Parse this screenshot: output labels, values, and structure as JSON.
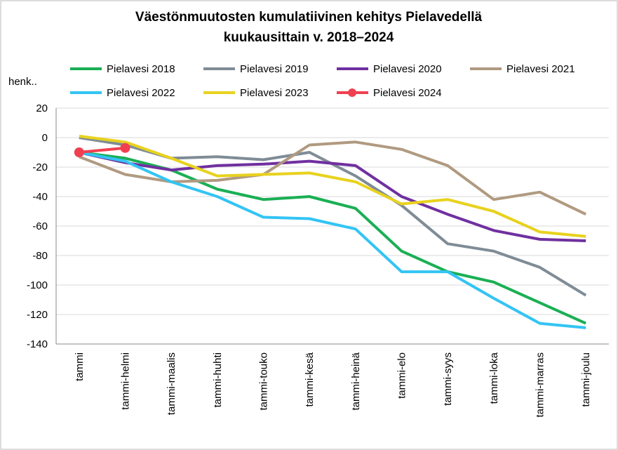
{
  "chart_data": {
    "type": "line",
    "title": [
      "Väestönmuutosten kumulatiivinen kehitys Pielavedellä",
      "kuukausittain v. 2018–2024"
    ],
    "y_label": "henk..",
    "categories": [
      "tammi",
      "tammi-helmi",
      "tammi-maalis",
      "tammi-huhti",
      "tammi-touko",
      "tammi-kesä",
      "tammi-heinä",
      "tammi-elo",
      "tammi-syys",
      "tammi-loka",
      "tammi-marras",
      "tammi-joulu"
    ],
    "series": [
      {
        "name": "Pielavesi 2018",
        "color": "#1aaf54",
        "values": [
          -10,
          -14,
          -22,
          -35,
          -42,
          -40,
          -48,
          -77,
          -91,
          -98,
          -112,
          -126
        ]
      },
      {
        "name": "Pielavesi 2019",
        "color": "#7f8c96",
        "values": [
          0,
          -5,
          -14,
          -13,
          -15,
          -10,
          -26,
          -46,
          -72,
          -77,
          -88,
          -107
        ]
      },
      {
        "name": "Pielavesi 2020",
        "color": "#7030a0",
        "values": [
          -10,
          -17,
          -22,
          -19,
          -18,
          -16,
          -19,
          -40,
          -52,
          -63,
          -69,
          -70
        ]
      },
      {
        "name": "Pielavesi 2021",
        "color": "#b09a80",
        "values": [
          -13,
          -25,
          -30,
          -29,
          -25,
          -5,
          -3,
          -8,
          -19,
          -42,
          -37,
          -52
        ]
      },
      {
        "name": "Pielavesi 2022",
        "color": "#33c4f4",
        "values": [
          -10,
          -16,
          -30,
          -40,
          -54,
          -55,
          -62,
          -91,
          -91,
          -109,
          -126,
          -129
        ]
      },
      {
        "name": "Pielavesi 2023",
        "color": "#e8d21e",
        "values": [
          1,
          -3,
          -14,
          -26,
          -25,
          -24,
          -30,
          -45,
          -42,
          -50,
          -64,
          -67
        ]
      },
      {
        "name": "Pielavesi 2024",
        "color": "#f04050",
        "markers": true,
        "values": [
          -10,
          -7,
          null,
          null,
          null,
          null,
          null,
          null,
          null,
          null,
          null,
          null
        ]
      }
    ],
    "ylim": [
      -140,
      20
    ],
    "yticks": [
      -140,
      -120,
      -100,
      -80,
      -60,
      -40,
      -20,
      0,
      20
    ],
    "grid": true
  }
}
